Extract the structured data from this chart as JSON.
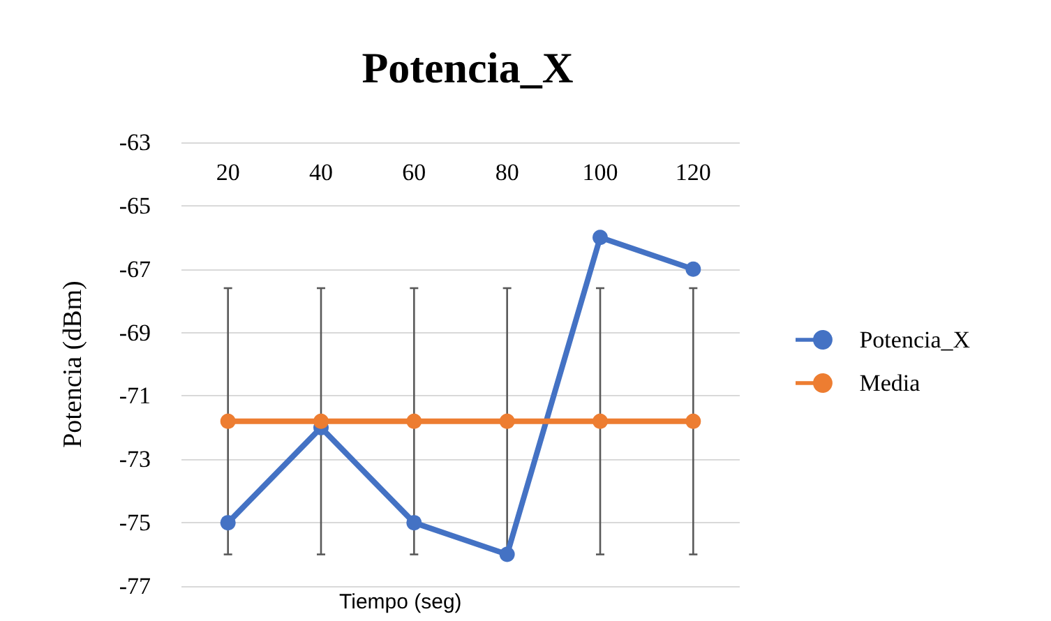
{
  "chart_data": {
    "type": "line",
    "title": "Potencia_X",
    "xlabel": "Tiempo (seg)",
    "ylabel": "Potencia (dBm)",
    "categories": [
      "20",
      "40",
      "60",
      "80",
      "100",
      "120"
    ],
    "series": [
      {
        "name": "Potencia_X",
        "color": "#4472c4",
        "values": [
          -75,
          -72,
          -75,
          -76,
          -66,
          -67
        ]
      },
      {
        "name": "Media",
        "color": "#ed7d31",
        "values": [
          -71.8,
          -71.8,
          -71.8,
          -71.8,
          -71.8,
          -71.8
        ],
        "errors": [
          4.2,
          4.2,
          4.2,
          4.2,
          4.2,
          4.2
        ]
      }
    ],
    "ylim": [
      -77,
      -63
    ],
    "yticks": [
      -77,
      -75,
      -73,
      -71,
      -69,
      -67,
      -65,
      -63
    ],
    "grid": "y",
    "legend": "right",
    "marker": "circle",
    "line_style": "solid"
  }
}
